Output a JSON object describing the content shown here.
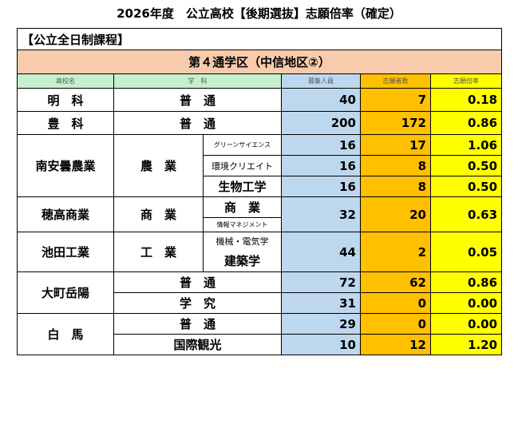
{
  "title": "2026年度　公立高校【後期選抜】志願倍率（確定）",
  "category": "【公立全日制課程】",
  "area": "第４通学区（中信地区②）",
  "headers": {
    "school": "高校名",
    "dept": "学　科",
    "capacity": "募集人員",
    "applicants": "志願者数",
    "ratio": "志願倍率"
  },
  "schools": [
    {
      "name": "明　科",
      "dept": "普　通",
      "capacity": "40",
      "applicants": "7",
      "ratio": "0.18"
    },
    {
      "name": "豊　科",
      "dept": "普　通",
      "capacity": "200",
      "applicants": "172",
      "ratio": "0.86"
    },
    {
      "name": "南安曇農業",
      "dept": "農　業",
      "courses": [
        {
          "name": "グリーンサイエンス",
          "capacity": "16",
          "applicants": "17",
          "ratio": "1.06"
        },
        {
          "name": "環境クリエイト",
          "capacity": "16",
          "applicants": "8",
          "ratio": "0.50"
        },
        {
          "name": "生物工学",
          "capacity": "16",
          "applicants": "8",
          "ratio": "0.50"
        }
      ]
    },
    {
      "name": "穂高商業",
      "dept": "商　業",
      "courses": [
        {
          "name": "商　業"
        },
        {
          "name": "情報マネジメント"
        }
      ],
      "capacity": "32",
      "applicants": "20",
      "ratio": "0.63"
    },
    {
      "name": "池田工業",
      "dept": "工　業",
      "courses": [
        {
          "name": "機械・電気学"
        },
        {
          "name": "建築学"
        }
      ],
      "capacity": "44",
      "applicants": "2",
      "ratio": "0.05"
    },
    {
      "name": "大町岳陽",
      "rows": [
        {
          "dept": "普　通",
          "capacity": "72",
          "applicants": "62",
          "ratio": "0.86"
        },
        {
          "dept": "学　究",
          "capacity": "31",
          "applicants": "0",
          "ratio": "0.00"
        }
      ]
    },
    {
      "name": "白　馬",
      "rows": [
        {
          "dept": "普　通",
          "capacity": "29",
          "applicants": "0",
          "ratio": "0.00"
        },
        {
          "dept": "国際観光",
          "capacity": "10",
          "applicants": "12",
          "ratio": "1.20"
        }
      ]
    }
  ]
}
